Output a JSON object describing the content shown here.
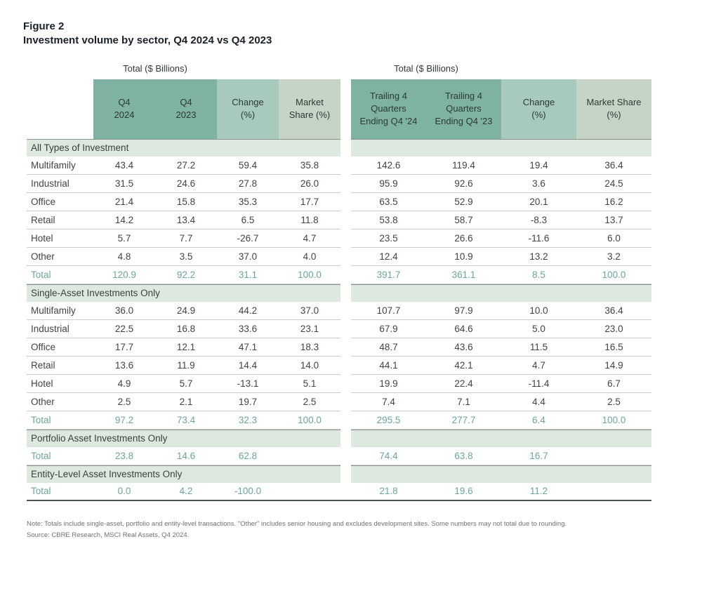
{
  "figure": {
    "label": "Figure 2",
    "title": "Investment volume by sector, Q4 2024 vs Q4 2023"
  },
  "left_table": {
    "units_label": "Total ($ Billions)",
    "columns": [
      "Q4\n2024",
      "Q4\n2023",
      "Change\n(%)",
      "Market\nShare (%)"
    ]
  },
  "right_table": {
    "units_label": "Total ($ Billions)",
    "columns": [
      "Trailing 4\nQuarters\nEnding Q4 '24",
      "Trailing 4\nQuarters\nEnding Q4 '23",
      "Change\n(%)",
      "Market Share\n(%)"
    ]
  },
  "sections": [
    {
      "name": "All Types of Investment",
      "rows": [
        {
          "label": "Multifamily",
          "left": [
            "43.4",
            "27.2",
            "59.4",
            "35.8"
          ],
          "right": [
            "142.6",
            "119.4",
            "19.4",
            "36.4"
          ]
        },
        {
          "label": "Industrial",
          "left": [
            "31.5",
            "24.6",
            "27.8",
            "26.0"
          ],
          "right": [
            "95.9",
            "92.6",
            "3.6",
            "24.5"
          ]
        },
        {
          "label": "Office",
          "left": [
            "21.4",
            "15.8",
            "35.3",
            "17.7"
          ],
          "right": [
            "63.5",
            "52.9",
            "20.1",
            "16.2"
          ]
        },
        {
          "label": "Retail",
          "left": [
            "14.2",
            "13.4",
            "6.5",
            "11.8"
          ],
          "right": [
            "53.8",
            "58.7",
            "-8.3",
            "13.7"
          ]
        },
        {
          "label": "Hotel",
          "left": [
            "5.7",
            "7.7",
            "-26.7",
            "4.7"
          ],
          "right": [
            "23.5",
            "26.6",
            "-11.6",
            "6.0"
          ]
        },
        {
          "label": "Other",
          "left": [
            "4.8",
            "3.5",
            "37.0",
            "4.0"
          ],
          "right": [
            "12.4",
            "10.9",
            "13.2",
            "3.2"
          ]
        }
      ],
      "total": {
        "label": "Total",
        "left": [
          "120.9",
          "92.2",
          "31.1",
          "100.0"
        ],
        "right": [
          "391.7",
          "361.1",
          "8.5",
          "100.0"
        ]
      }
    },
    {
      "name": "Single-Asset Investments Only",
      "rows": [
        {
          "label": "Multifamily",
          "left": [
            "36.0",
            "24.9",
            "44.2",
            "37.0"
          ],
          "right": [
            "107.7",
            "97.9",
            "10.0",
            "36.4"
          ]
        },
        {
          "label": "Industrial",
          "left": [
            "22.5",
            "16.8",
            "33.6",
            "23.1"
          ],
          "right": [
            "67.9",
            "64.6",
            "5.0",
            "23.0"
          ]
        },
        {
          "label": "Office",
          "left": [
            "17.7",
            "12.1",
            "47.1",
            "18.3"
          ],
          "right": [
            "48.7",
            "43.6",
            "11.5",
            "16.5"
          ]
        },
        {
          "label": "Retail",
          "left": [
            "13.6",
            "11.9",
            "14.4",
            "14.0"
          ],
          "right": [
            "44.1",
            "42.1",
            "4.7",
            "14.9"
          ]
        },
        {
          "label": "Hotel",
          "left": [
            "4.9",
            "5.7",
            "-13.1",
            "5.1"
          ],
          "right": [
            "19.9",
            "22.4",
            "-11.4",
            "6.7"
          ]
        },
        {
          "label": "Other",
          "left": [
            "2.5",
            "2.1",
            "19.7",
            "2.5"
          ],
          "right": [
            "7.4",
            "7.1",
            "4.4",
            "2.5"
          ]
        }
      ],
      "total": {
        "label": "Total",
        "left": [
          "97.2",
          "73.4",
          "32.3",
          "100.0"
        ],
        "right": [
          "295.5",
          "277.7",
          "6.4",
          "100.0"
        ]
      }
    },
    {
      "name": "Portfolio Asset Investments Only",
      "rows": [],
      "total": {
        "label": "Total",
        "left": [
          "23.8",
          "14.6",
          "62.8",
          ""
        ],
        "right": [
          "74.4",
          "63.8",
          "16.7",
          ""
        ]
      }
    },
    {
      "name": "Entity-Level Asset Investments Only",
      "rows": [],
      "total": {
        "label": "Total",
        "left": [
          "0.0",
          "4.2",
          "-100.0",
          ""
        ],
        "right": [
          "21.8",
          "19.6",
          "11.2",
          ""
        ]
      }
    }
  ],
  "footer": {
    "note": "Note: Totals include single-asset, portfolio and entity-level transactions. \"Other\" includes senior housing and excludes development sites. Some numbers may not total due to rounding.",
    "source": "Source: CBRE Research, MSCI Real Assets, Q4 2024."
  },
  "colors": {
    "header_dark_teal": "#7eb3a3",
    "header_mid_teal": "#a8cabc",
    "header_light_sage": "#c6d4c8",
    "section_band": "#dde8df",
    "total_text": "#6ca894",
    "body_text": "#3e4542"
  }
}
